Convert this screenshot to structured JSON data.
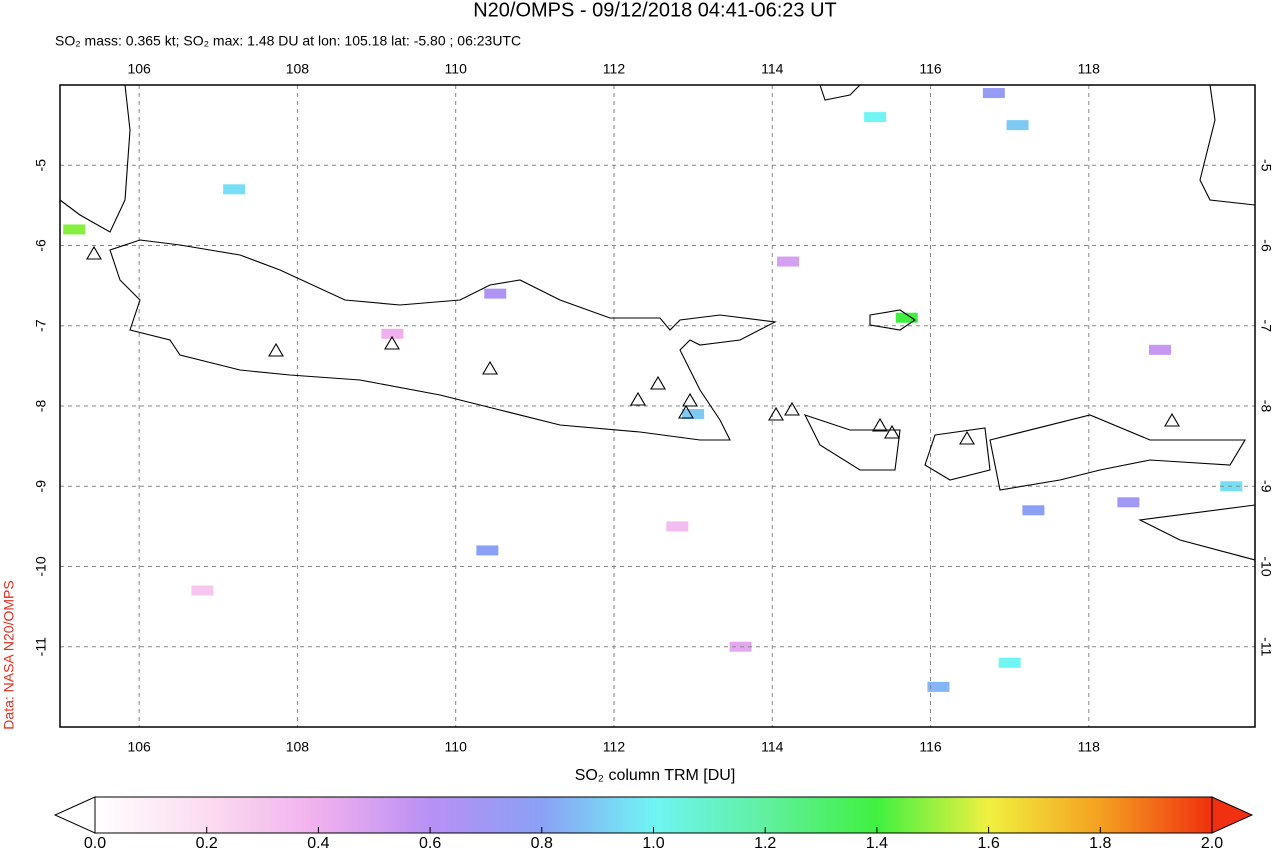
{
  "header": {
    "title": "N20/OMPS - 09/12/2018 04:41-06:23 UT",
    "subtitle": "SO₂ mass: 0.365 kt; SO₂ max: 1.48 DU at lon: 105.18 lat: -5.80 ; 06:23UTC"
  },
  "map": {
    "xlim": [
      105,
      120.1
    ],
    "ylim": [
      -12,
      -4
    ],
    "xticks": [
      106,
      108,
      110,
      112,
      114,
      116,
      118
    ],
    "yticks": [
      -5,
      -6,
      -7,
      -8,
      -9,
      -10,
      -11
    ],
    "pixels": [
      {
        "lon": 105.18,
        "lat": -5.8,
        "value": 1.48
      },
      {
        "lon": 115.3,
        "lat": -4.4,
        "value": 1.0
      },
      {
        "lon": 115.7,
        "lat": -6.9,
        "value": 1.4
      },
      {
        "lon": 117.1,
        "lat": -4.5,
        "value": 0.9
      },
      {
        "lon": 119.8,
        "lat": -9.0,
        "value": 0.95
      },
      {
        "lon": 113.0,
        "lat": -8.1,
        "value": 0.9
      },
      {
        "lon": 117.0,
        "lat": -11.2,
        "value": 1.0
      },
      {
        "lon": 116.1,
        "lat": -11.5,
        "value": 0.85
      },
      {
        "lon": 110.4,
        "lat": -9.8,
        "value": 0.8
      },
      {
        "lon": 107.2,
        "lat": -5.3,
        "value": 0.95
      },
      {
        "lon": 117.3,
        "lat": -9.3,
        "value": 0.8
      },
      {
        "lon": 116.8,
        "lat": -4.1,
        "value": 0.75
      },
      {
        "lon": 118.5,
        "lat": -9.2,
        "value": 0.7
      },
      {
        "lon": 110.5,
        "lat": -6.6,
        "value": 0.65
      },
      {
        "lon": 114.2,
        "lat": -6.2,
        "value": 0.5
      },
      {
        "lon": 109.2,
        "lat": -7.1,
        "value": 0.4
      },
      {
        "lon": 112.8,
        "lat": -9.5,
        "value": 0.35
      },
      {
        "lon": 106.8,
        "lat": -10.3,
        "value": 0.3
      },
      {
        "lon": 118.9,
        "lat": -7.3,
        "value": 0.55
      },
      {
        "lon": 113.6,
        "lat": -11.0,
        "value": 0.45
      }
    ]
  },
  "colorbar": {
    "label": "SO₂ column TRM [DU]",
    "range": [
      0,
      2
    ],
    "ticks": [
      {
        "value": 0,
        "label": "0.0"
      },
      {
        "value": 0.2,
        "label": "0.2"
      },
      {
        "value": 0.4,
        "label": "0.4"
      },
      {
        "value": 0.6,
        "label": "0.6"
      },
      {
        "value": 0.8,
        "label": "0.8"
      },
      {
        "value": 1,
        "label": "1.0"
      },
      {
        "value": 1.2,
        "label": "1.2"
      },
      {
        "value": 1.4,
        "label": "1.4"
      },
      {
        "value": 1.6,
        "label": "1.6"
      },
      {
        "value": 1.8,
        "label": "1.8"
      },
      {
        "value": 2,
        "label": "2.0"
      }
    ]
  },
  "credit": "Data: NASA N20/OMPS"
}
